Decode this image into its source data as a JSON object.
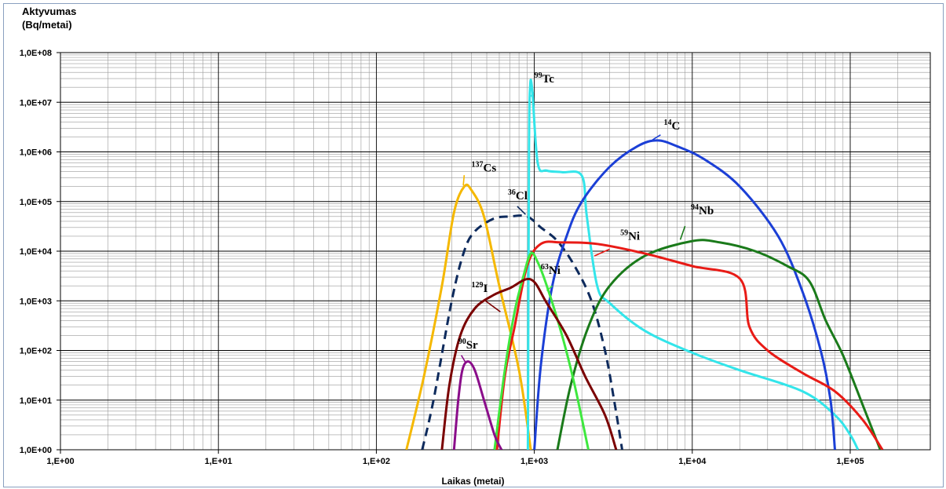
{
  "chart_data": {
    "type": "line",
    "ylabel_line1": "Aktyvumas",
    "ylabel_line2": "(Bq/metai)",
    "xlabel": "Laikas (metai)",
    "x_scale": "log",
    "y_scale": "log",
    "xlim": [
      1,
      200000
    ],
    "ylim": [
      1,
      100000000
    ],
    "grid": true,
    "x_ticks": [
      "1,E+00",
      "1,E+01",
      "1,E+02",
      "1,E+03",
      "1,E+04",
      "1,E+05"
    ],
    "y_ticks": [
      "1,0E+00",
      "1,0E+01",
      "1,0E+02",
      "1,0E+03",
      "1,0E+04",
      "1,0E+05",
      "1,0E+06",
      "1,0E+07",
      "1,0E+08"
    ],
    "series": [
      {
        "name": "137Cs",
        "mass": "137",
        "symbol": "Cs",
        "color": "#f5b800",
        "dash": false,
        "points": [
          [
            155,
            1
          ],
          [
            200,
            30
          ],
          [
            260,
            2000
          ],
          [
            310,
            60000
          ],
          [
            360,
            200000
          ],
          [
            400,
            170000
          ],
          [
            480,
            50000
          ],
          [
            600,
            2000
          ],
          [
            800,
            40
          ],
          [
            950,
            1
          ]
        ],
        "label_at": [
          400,
          400000
        ],
        "leader": [
          [
            360,
            340000
          ],
          [
            355,
            210000
          ]
        ]
      },
      {
        "name": "36Cl",
        "mass": "36",
        "symbol": "Cl",
        "color": "#0d2a5c",
        "dash": true,
        "points": [
          [
            195,
            1
          ],
          [
            230,
            10
          ],
          [
            300,
            1000
          ],
          [
            360,
            10000
          ],
          [
            420,
            25000
          ],
          [
            550,
            45000
          ],
          [
            700,
            50000
          ],
          [
            900,
            50000
          ],
          [
            1100,
            30000
          ],
          [
            1400,
            16000
          ],
          [
            1800,
            5000
          ],
          [
            2300,
            1000
          ],
          [
            2800,
            100
          ],
          [
            3200,
            10
          ],
          [
            3600,
            1
          ]
        ],
        "label_at": [
          680,
          110000
        ],
        "leader": [
          [
            780,
            80000
          ],
          [
            880,
            55000
          ]
        ]
      },
      {
        "name": "99Tc",
        "mass": "99",
        "symbol": "Tc",
        "color": "#33e5ea",
        "dash": false,
        "points": [
          [
            910,
            1
          ],
          [
            925,
            1000000
          ],
          [
            940,
            20000000
          ],
          [
            970,
            18000000
          ],
          [
            1050,
            600000
          ],
          [
            1200,
            420000
          ],
          [
            1500,
            390000
          ],
          [
            2000,
            330000
          ],
          [
            2150,
            50000
          ],
          [
            2500,
            2000
          ],
          [
            3000,
            900
          ],
          [
            5000,
            250
          ],
          [
            10000,
            90
          ],
          [
            20000,
            40
          ],
          [
            50000,
            15
          ],
          [
            80000,
            5
          ],
          [
            100000,
            2
          ],
          [
            112000,
            1
          ]
        ],
        "label_at": [
          1000,
          25000000
        ],
        "leader": [
          [
            990,
            16000000
          ],
          [
            950,
            13000000
          ]
        ]
      },
      {
        "name": "14C",
        "mass": "14",
        "symbol": "C",
        "color": "#1b3fd6",
        "dash": false,
        "points": [
          [
            1000,
            1
          ],
          [
            1100,
            50
          ],
          [
            1300,
            2000
          ],
          [
            1600,
            20000
          ],
          [
            2000,
            100000
          ],
          [
            3000,
            500000
          ],
          [
            4500,
            1300000
          ],
          [
            6000,
            1700000
          ],
          [
            8000,
            1300000
          ],
          [
            12000,
            700000
          ],
          [
            20000,
            200000
          ],
          [
            35000,
            20000
          ],
          [
            50000,
            1500
          ],
          [
            65000,
            100
          ],
          [
            75000,
            10
          ],
          [
            80000,
            1
          ]
        ],
        "label_at": [
          6600,
          2800000
        ],
        "leader": [
          [
            6300,
            2200000
          ],
          [
            5600,
            1750000
          ]
        ]
      },
      {
        "name": "94Nb",
        "mass": "94",
        "symbol": "Nb",
        "color": "#1a7a1a",
        "dash": false,
        "points": [
          [
            1400,
            1
          ],
          [
            1700,
            20
          ],
          [
            2200,
            300
          ],
          [
            3000,
            2000
          ],
          [
            5000,
            8000
          ],
          [
            10000,
            16000
          ],
          [
            15000,
            15000
          ],
          [
            25000,
            10000
          ],
          [
            40000,
            5000
          ],
          [
            55000,
            2500
          ],
          [
            70000,
            400
          ],
          [
            90000,
            80
          ],
          [
            120000,
            8
          ],
          [
            155000,
            1
          ]
        ],
        "label_at": [
          9800,
          55000
        ],
        "leader": [
          [
            9000,
            32000
          ],
          [
            8400,
            17000
          ]
        ]
      },
      {
        "name": "59Ni",
        "mass": "59",
        "symbol": "Ni",
        "color": "#e81b16",
        "dash": false,
        "points": [
          [
            580,
            1
          ],
          [
            650,
            30
          ],
          [
            750,
            300
          ],
          [
            900,
            5000
          ],
          [
            1100,
            14000
          ],
          [
            1500,
            15000
          ],
          [
            2500,
            14000
          ],
          [
            5000,
            9000
          ],
          [
            10000,
            5000
          ],
          [
            20000,
            2800
          ],
          [
            23000,
            300
          ],
          [
            30000,
            100
          ],
          [
            50000,
            35
          ],
          [
            80000,
            15
          ],
          [
            120000,
            4
          ],
          [
            160000,
            1
          ]
        ],
        "label_at": [
          3500,
          17000
        ],
        "leader": [
          [
            3000,
            11000
          ],
          [
            2400,
            8000
          ]
        ]
      },
      {
        "name": "63Ni",
        "mass": "63",
        "symbol": "Ni",
        "color": "#3ee83e",
        "dash": false,
        "points": [
          [
            560,
            1
          ],
          [
            650,
            40
          ],
          [
            750,
            600
          ],
          [
            850,
            3000
          ],
          [
            950,
            9000
          ],
          [
            1050,
            6000
          ],
          [
            1200,
            2000
          ],
          [
            1500,
            200
          ],
          [
            1800,
            20
          ],
          [
            2200,
            1
          ]
        ],
        "label_at": [
          1100,
          3500
        ],
        "leader": [
          [
            1300,
            2000
          ],
          [
            1200,
            1600
          ]
        ]
      },
      {
        "name": "129I",
        "mass": "129",
        "symbol": "I",
        "color": "#7a0000",
        "dash": false,
        "points": [
          [
            260,
            1
          ],
          [
            290,
            20
          ],
          [
            340,
            200
          ],
          [
            420,
            700
          ],
          [
            550,
            1300
          ],
          [
            700,
            1800
          ],
          [
            950,
            2700
          ],
          [
            1200,
            900
          ],
          [
            1600,
            200
          ],
          [
            2100,
            30
          ],
          [
            2800,
            5
          ],
          [
            3300,
            1
          ]
        ],
        "label_at": [
          400,
          1500
        ],
        "leader": [
          [
            490,
            1000
          ],
          [
            610,
            600
          ]
        ]
      },
      {
        "name": "90Sr",
        "mass": "90",
        "symbol": "Sr",
        "color": "#8a0d8a",
        "dash": false,
        "points": [
          [
            310,
            1
          ],
          [
            330,
            10
          ],
          [
            350,
            40
          ],
          [
            380,
            60
          ],
          [
            420,
            40
          ],
          [
            480,
            10
          ],
          [
            560,
            2
          ],
          [
            620,
            1
          ]
        ],
        "label_at": [
          330,
          110
        ],
        "leader": [
          [
            345,
            80
          ],
          [
            370,
            55
          ]
        ]
      }
    ]
  }
}
